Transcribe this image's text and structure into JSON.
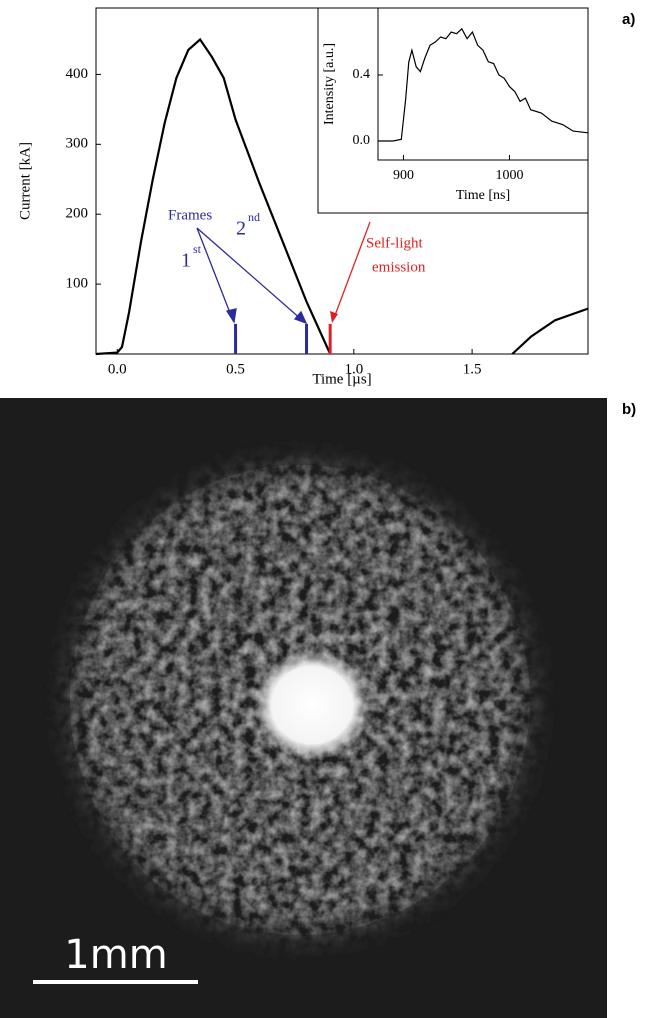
{
  "chart_data": [
    {
      "type": "line",
      "xlabel": "Time [µs]",
      "ylabel": "Current [kA]",
      "xlim": [
        -0.09,
        1.99
      ],
      "ylim": [
        0,
        495
      ],
      "xticks": [
        {
          "value": 0,
          "label": "0.0"
        },
        0.5,
        {
          "value": 1,
          "label": "1.0"
        },
        1.5
      ],
      "yticks": [
        100,
        200,
        300,
        400
      ],
      "x": [
        -0.09,
        0,
        0.02,
        0.05,
        0.1,
        0.15,
        0.2,
        0.25,
        0.3,
        0.35,
        0.4,
        0.45,
        0.5,
        0.6,
        0.7,
        0.8,
        0.9,
        null,
        1.67,
        1.75,
        1.85,
        1.99
      ],
      "series": [
        {
          "color": "#000000",
          "values": [
            0,
            2,
            10,
            60,
            160,
            250,
            330,
            395,
            435,
            450,
            425,
            395,
            335,
            245,
            160,
            75,
            0,
            null,
            0,
            25,
            48,
            65
          ]
        }
      ],
      "markers": [
        {
          "x": 0.5,
          "y": 43,
          "color": "#2b2b9c"
        },
        {
          "x": 0.8,
          "y": 43,
          "color": "#2b2b9c"
        },
        {
          "x": 0.9,
          "y": 43,
          "color": "#e02020"
        }
      ],
      "annotations": {
        "frames": "Frames",
        "first": "1",
        "first_sup": "st",
        "second": "2",
        "second_sup": "nd",
        "self_light_1": "Self-light",
        "self_light_2": "emission"
      }
    },
    {
      "type": "line",
      "xlabel": "Time [ns]",
      "ylabel": "Intensity [a.u.]",
      "xlim": [
        876,
        1074
      ],
      "ylim": [
        -0.115,
        0.806
      ],
      "xticks": [
        900,
        1000
      ],
      "yticks": [
        {
          "value": 0,
          "label": "0.0"
        },
        0.4
      ],
      "x": [
        876,
        890,
        898,
        902,
        905,
        908,
        912,
        916,
        920,
        925,
        930,
        935,
        940,
        945,
        950,
        955,
        960,
        965,
        970,
        975,
        980,
        985,
        990,
        995,
        1000,
        1005,
        1010,
        1015,
        1020,
        1030,
        1040,
        1050,
        1060,
        1074
      ],
      "series": [
        {
          "color": "#000000",
          "values": [
            0.0,
            0.0,
            0.01,
            0.25,
            0.48,
            0.55,
            0.45,
            0.42,
            0.5,
            0.58,
            0.6,
            0.63,
            0.62,
            0.66,
            0.65,
            0.68,
            0.62,
            0.66,
            0.58,
            0.55,
            0.48,
            0.47,
            0.4,
            0.38,
            0.33,
            0.3,
            0.24,
            0.26,
            0.19,
            0.17,
            0.12,
            0.1,
            0.06,
            0.05
          ]
        }
      ]
    }
  ],
  "panel_labels": [
    "a)",
    "b)"
  ],
  "image": {
    "scale_label": "1mm"
  }
}
